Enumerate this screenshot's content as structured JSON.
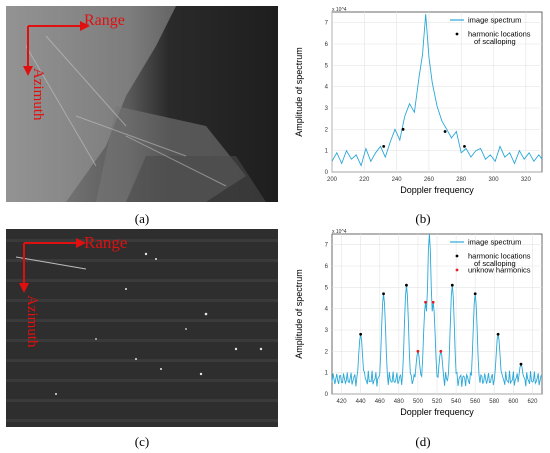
{
  "figure": {
    "panels": [
      {
        "id": "a",
        "caption": "(a)",
        "range_label": "Range",
        "azimuth_label": "Azimuth"
      },
      {
        "id": "c",
        "caption": "(c)",
        "range_label": "Range",
        "azimuth_label": "Azimuth"
      }
    ],
    "captions": {
      "b": "(b)",
      "d": "(d)"
    }
  },
  "chart_data": [
    {
      "id": "b",
      "type": "line",
      "xlabel": "Doppler frequency",
      "ylabel": "Amplitude of spectrum",
      "y_exponent": "x 10^4",
      "xlim": [
        200,
        330
      ],
      "ylim": [
        0,
        7.5
      ],
      "xticks": [
        200,
        220,
        240,
        260,
        280,
        300,
        320
      ],
      "yticks": [
        0,
        1,
        2,
        3,
        4,
        5,
        6,
        7
      ],
      "legend": {
        "placement": "top-right",
        "entries": [
          {
            "label": "image spectrum",
            "color": "#2aa8d8",
            "kind": "line"
          },
          {
            "label": "harmonic locations",
            "label2": "of scalloping",
            "color": "#000000",
            "kind": "marker"
          }
        ]
      },
      "spectrum_x": [
        200,
        203,
        206,
        209,
        212,
        215,
        218,
        221,
        224,
        227,
        230,
        233,
        236,
        239,
        242,
        245,
        248,
        251,
        254,
        256,
        258,
        260,
        262,
        265,
        268,
        271,
        274,
        277,
        280,
        283,
        286,
        289,
        292,
        295,
        298,
        301,
        304,
        307,
        310,
        313,
        316,
        319,
        322,
        325,
        328,
        330
      ],
      "spectrum_y": [
        0.5,
        0.9,
        0.4,
        1.0,
        0.6,
        0.8,
        0.3,
        1.1,
        0.5,
        0.9,
        1.2,
        0.7,
        1.4,
        2.0,
        1.5,
        2.6,
        3.2,
        2.8,
        4.5,
        5.5,
        7.4,
        5.4,
        4.2,
        3.1,
        2.4,
        2.0,
        1.6,
        1.9,
        0.9,
        1.1,
        0.7,
        1.0,
        1.1,
        0.6,
        0.8,
        0.5,
        1.2,
        0.7,
        0.9,
        0.4,
        1.0,
        0.6,
        0.9,
        0.5,
        0.8,
        0.6
      ],
      "markers": [
        {
          "x": 232,
          "y": 1.2
        },
        {
          "x": 244,
          "y": 2.0
        },
        {
          "x": 270,
          "y": 1.9
        },
        {
          "x": 282,
          "y": 1.2
        }
      ]
    },
    {
      "id": "d",
      "type": "line",
      "xlabel": "Doppler frequency",
      "ylabel": "Amplitude of spectrum",
      "y_exponent": "x 10^4",
      "xlim": [
        410,
        630
      ],
      "ylim": [
        0,
        7.5
      ],
      "xticks": [
        420,
        440,
        460,
        480,
        500,
        520,
        540,
        560,
        580,
        600,
        620
      ],
      "yticks": [
        0,
        1,
        2,
        3,
        4,
        5,
        6,
        7
      ],
      "legend": {
        "placement": "top-right",
        "entries": [
          {
            "label": "image spectrum",
            "color": "#2aa8d8",
            "kind": "line"
          },
          {
            "label": "harmonic locations",
            "label2": "of scalloping",
            "color": "#000000",
            "kind": "marker"
          },
          {
            "label": "unknow harmonics",
            "color": "#e02020",
            "kind": "marker"
          }
        ]
      },
      "peaks": [
        {
          "x": 440,
          "y": 2.8
        },
        {
          "x": 464,
          "y": 4.7
        },
        {
          "x": 488,
          "y": 5.1
        },
        {
          "x": 512,
          "y": 7.5
        },
        {
          "x": 536,
          "y": 5.1
        },
        {
          "x": 560,
          "y": 4.7
        },
        {
          "x": 584,
          "y": 2.8
        },
        {
          "x": 608,
          "y": 1.4
        },
        {
          "x": 500,
          "y": 2.0
        },
        {
          "x": 508,
          "y": 4.3
        },
        {
          "x": 516,
          "y": 4.3
        },
        {
          "x": 524,
          "y": 2.0
        }
      ],
      "baseline": 0.7,
      "markers_black": [
        {
          "x": 440,
          "y": 2.8
        },
        {
          "x": 464,
          "y": 4.7
        },
        {
          "x": 488,
          "y": 5.1
        },
        {
          "x": 536,
          "y": 5.1
        },
        {
          "x": 560,
          "y": 4.7
        },
        {
          "x": 584,
          "y": 2.8
        },
        {
          "x": 608,
          "y": 1.4
        }
      ],
      "markers_red": [
        {
          "x": 500,
          "y": 2.0
        },
        {
          "x": 508,
          "y": 4.3
        },
        {
          "x": 516,
          "y": 4.3
        },
        {
          "x": 524,
          "y": 2.0
        }
      ]
    }
  ]
}
